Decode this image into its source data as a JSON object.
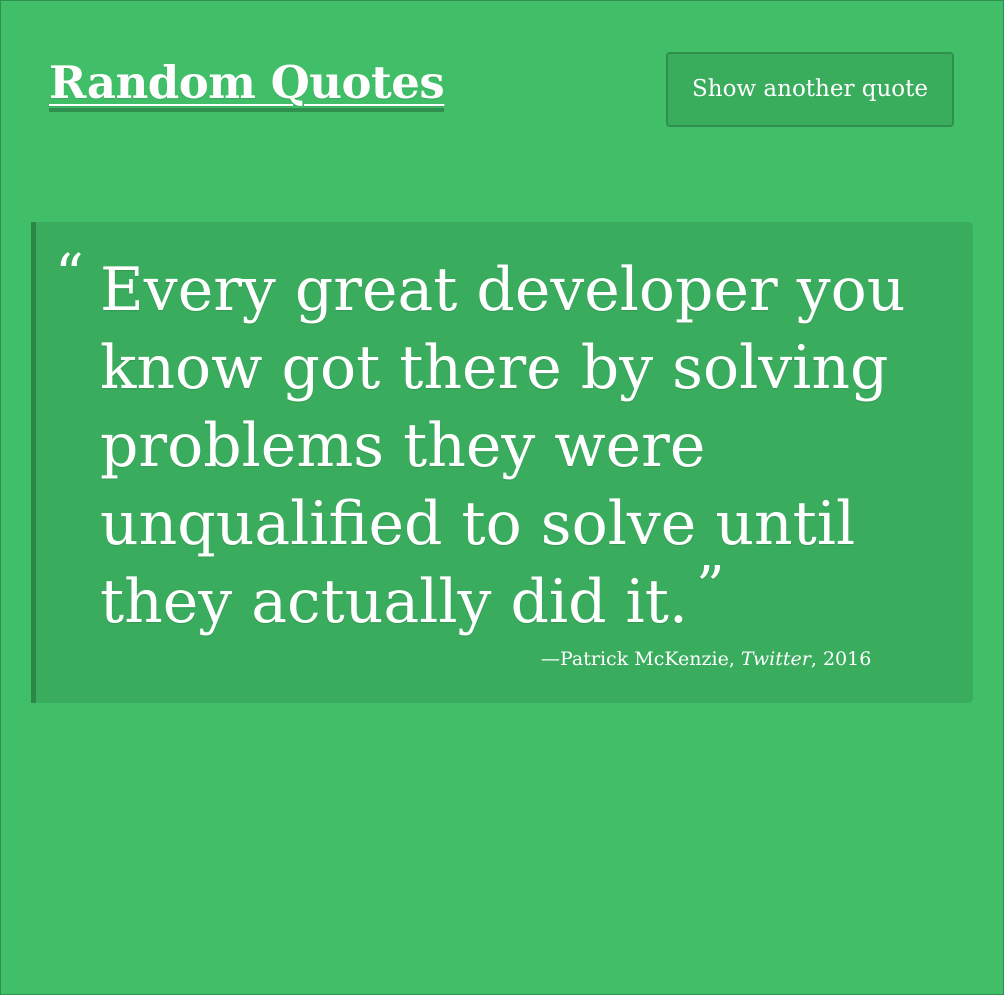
{
  "header": {
    "title": "Random Quotes",
    "button_label": "Show another quote"
  },
  "quote": {
    "open_mark": "“",
    "text": "Every great developer you know got there by solving problems they were unqualified to solve until they actually did it.",
    "close_mark": "”",
    "author_prefix": "—Patrick McKenzie, ",
    "source": "Twitter",
    "year_suffix": ", 2016"
  },
  "theme": {
    "background": "#41bf68",
    "card": "#3aac5d",
    "border": "#2c8647",
    "text": "#ffffff"
  }
}
